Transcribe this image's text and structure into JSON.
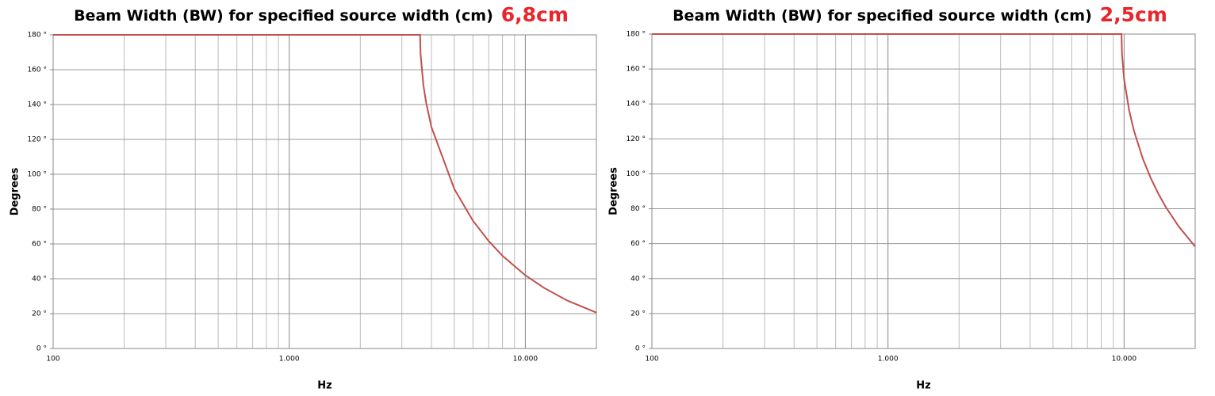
{
  "chart_data": [
    {
      "type": "line",
      "title": "Beam Width (BW) for specified source width (cm)",
      "title_highlight": "6,8cm",
      "xlabel": "Hz",
      "ylabel": "Degrees",
      "log_x": true,
      "grid": true,
      "color": "#c0504d",
      "x": [
        100,
        1000,
        3584,
        3600,
        3700,
        3800,
        4000,
        5000,
        6000,
        7000,
        8000,
        10000,
        12000,
        15000,
        20000
      ],
      "values": [
        180,
        180,
        180,
        169,
        151.2,
        141.2,
        127.2,
        91.6,
        73.3,
        61.6,
        53.2,
        42,
        34.8,
        27.6,
        20.6
      ],
      "xlim": [
        100,
        20000
      ],
      "ylim": [
        0,
        180
      ],
      "xticks": [
        100,
        {
          "value": 1000,
          "label": "1.000"
        },
        {
          "value": 10000,
          "label": "10.000"
        }
      ],
      "x_minor_grid": [
        200,
        300,
        400,
        500,
        600,
        700,
        800,
        900,
        2000,
        3000,
        4000,
        5000,
        6000,
        7000,
        8000,
        9000
      ],
      "yticks": [
        {
          "value": 0,
          "label": "0 °"
        },
        {
          "value": 20,
          "label": "20 °"
        },
        {
          "value": 40,
          "label": "40 °"
        },
        {
          "value": 60,
          "label": "60 °"
        },
        {
          "value": 80,
          "label": "80 °"
        },
        {
          "value": 100,
          "label": "100 °"
        },
        {
          "value": 120,
          "label": "120 °"
        },
        {
          "value": 140,
          "label": "140 °"
        },
        {
          "value": 160,
          "label": "160 °"
        },
        {
          "value": 180,
          "label": "180 °"
        }
      ]
    },
    {
      "type": "line",
      "title": "Beam Width (BW) for specified source width (cm)",
      "title_highlight": "2,5cm",
      "xlabel": "Hz",
      "ylabel": "Degrees",
      "log_x": true,
      "grid": true,
      "color": "#c0504d",
      "x": [
        100,
        1000,
        9749,
        9800,
        10000,
        10500,
        11000,
        12000,
        13000,
        14000,
        15000,
        17000,
        20000
      ],
      "values": [
        180,
        180,
        180,
        168.3,
        154.2,
        136.4,
        124.8,
        108.7,
        97.2,
        88.3,
        81.1,
        70,
        58.3
      ],
      "xlim": [
        100,
        20000
      ],
      "ylim": [
        0,
        180
      ],
      "xticks": [
        100,
        {
          "value": 1000,
          "label": "1.000"
        },
        {
          "value": 10000,
          "label": "10.000"
        }
      ],
      "x_minor_grid": [
        200,
        300,
        400,
        500,
        600,
        700,
        800,
        900,
        2000,
        3000,
        4000,
        5000,
        6000,
        7000,
        8000,
        9000
      ],
      "yticks": [
        {
          "value": 0,
          "label": "0 °"
        },
        {
          "value": 20,
          "label": "20 °"
        },
        {
          "value": 40,
          "label": "40 °"
        },
        {
          "value": 60,
          "label": "60 °"
        },
        {
          "value": 80,
          "label": "80 °"
        },
        {
          "value": 100,
          "label": "100 °"
        },
        {
          "value": 120,
          "label": "120 °"
        },
        {
          "value": 140,
          "label": "140 °"
        },
        {
          "value": 160,
          "label": "160 °"
        },
        {
          "value": 180,
          "label": "180 °"
        }
      ]
    }
  ]
}
